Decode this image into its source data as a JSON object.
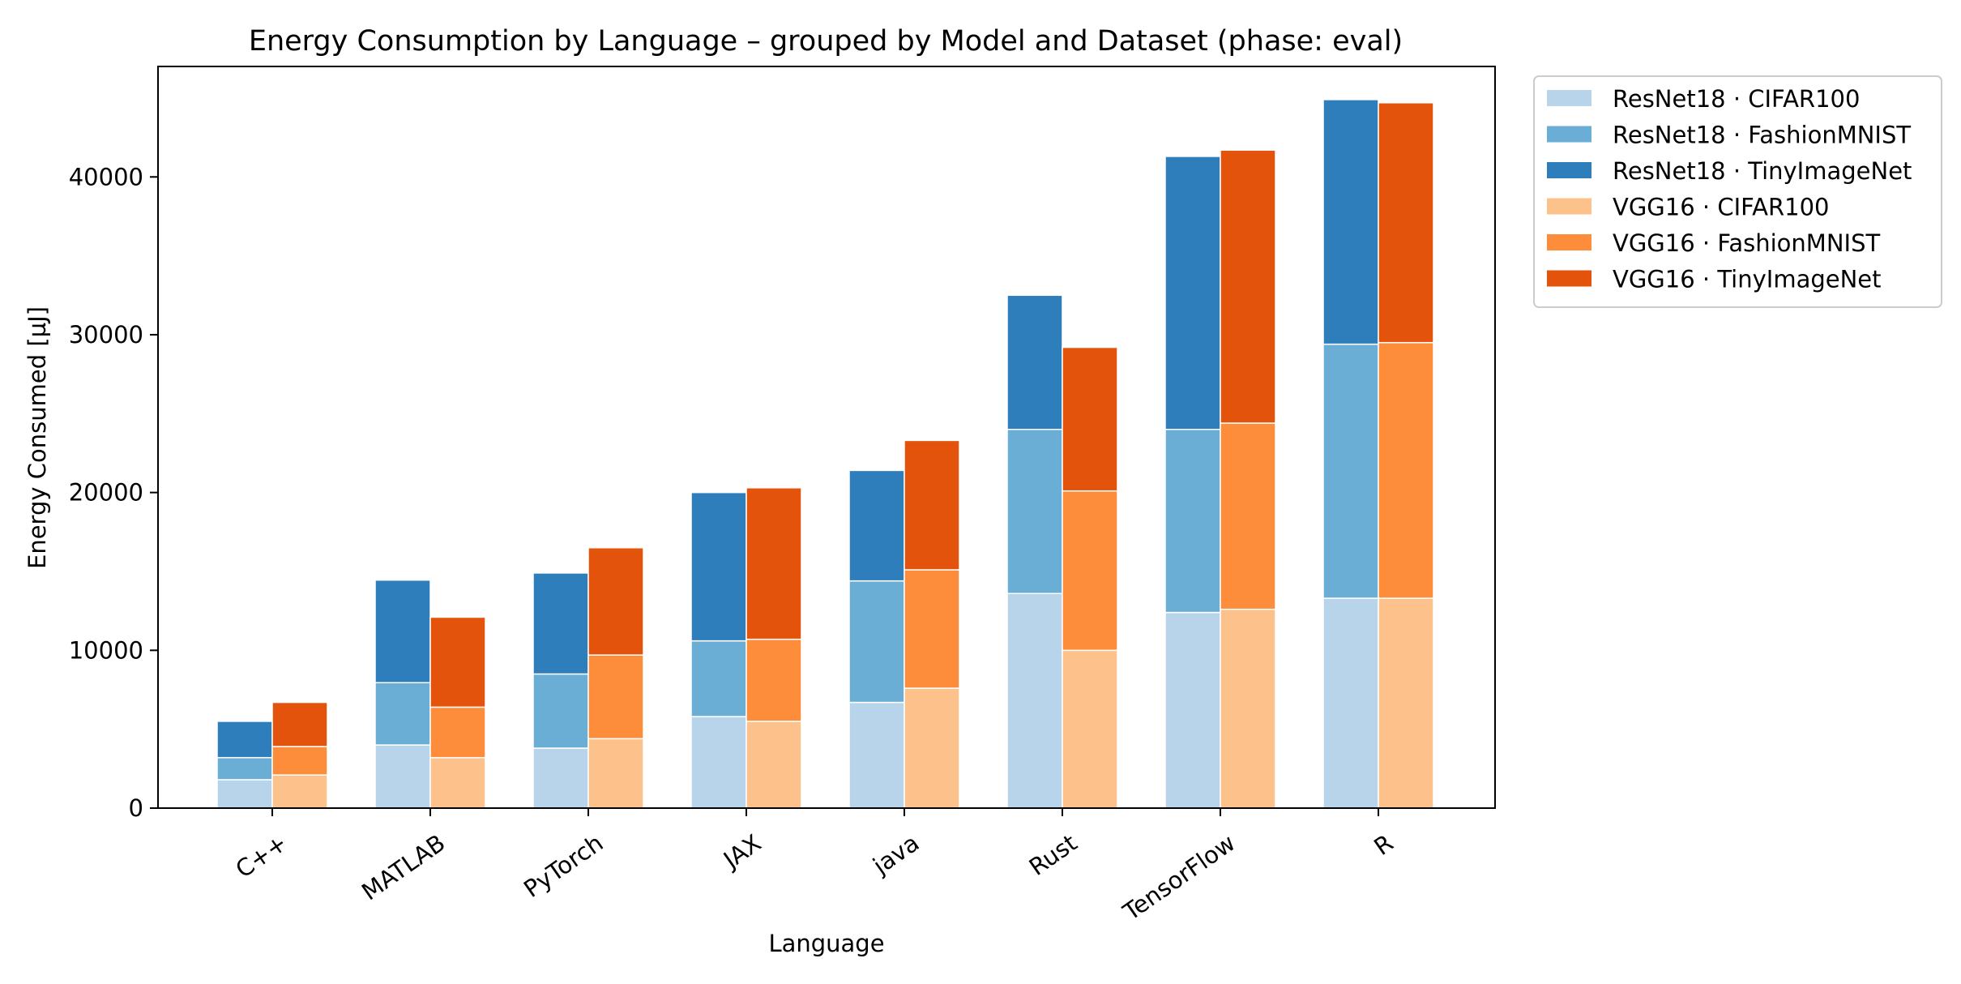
{
  "chart_data": {
    "type": "bar",
    "title": "Energy Consumption by Language – grouped by Model and Dataset (phase: eval)",
    "xlabel": "Language",
    "ylabel": "Energy Consumed [µJ]",
    "ylim": [
      0,
      47000
    ],
    "yticks": [
      0,
      10000,
      20000,
      30000,
      40000
    ],
    "categories": [
      "C++",
      "MATLAB",
      "PyTorch",
      "JAX",
      "java",
      "Rust",
      "TensorFlow",
      "R"
    ],
    "legend_position": "outside-top-right",
    "grid": false,
    "groups": [
      {
        "name": "ResNet18",
        "segments": [
          {
            "name": "ResNet18 · CIFAR100",
            "color": "#b8d4ea",
            "values": [
              1800,
              4000,
              3800,
              5800,
              6700,
              13600,
              12400,
              13300
            ]
          },
          {
            "name": "ResNet18 · FashionMNIST",
            "color": "#6aaed6",
            "values": [
              1400,
              3950,
              4700,
              4800,
              7700,
              10400,
              11600,
              16100
            ]
          },
          {
            "name": "ResNet18 · TinyImageNet",
            "color": "#2f7ebc",
            "values": [
              2300,
              6500,
              6400,
              9400,
              7000,
              8500,
              17300,
              15500
            ]
          }
        ]
      },
      {
        "name": "VGG16",
        "segments": [
          {
            "name": "VGG16 · CIFAR100",
            "color": "#fdc28b",
            "values": [
              2100,
              3200,
              4400,
              5500,
              7600,
              10000,
              12600,
              13300
            ]
          },
          {
            "name": "VGG16 · FashionMNIST",
            "color": "#fd8c3b",
            "values": [
              1800,
              3200,
              5300,
              5200,
              7500,
              10100,
              11800,
              16200
            ]
          },
          {
            "name": "VGG16 · TinyImageNet",
            "color": "#e4530b",
            "values": [
              2800,
              5700,
              6800,
              9600,
              8200,
              9100,
              17300,
              15200
            ]
          }
        ]
      }
    ]
  }
}
